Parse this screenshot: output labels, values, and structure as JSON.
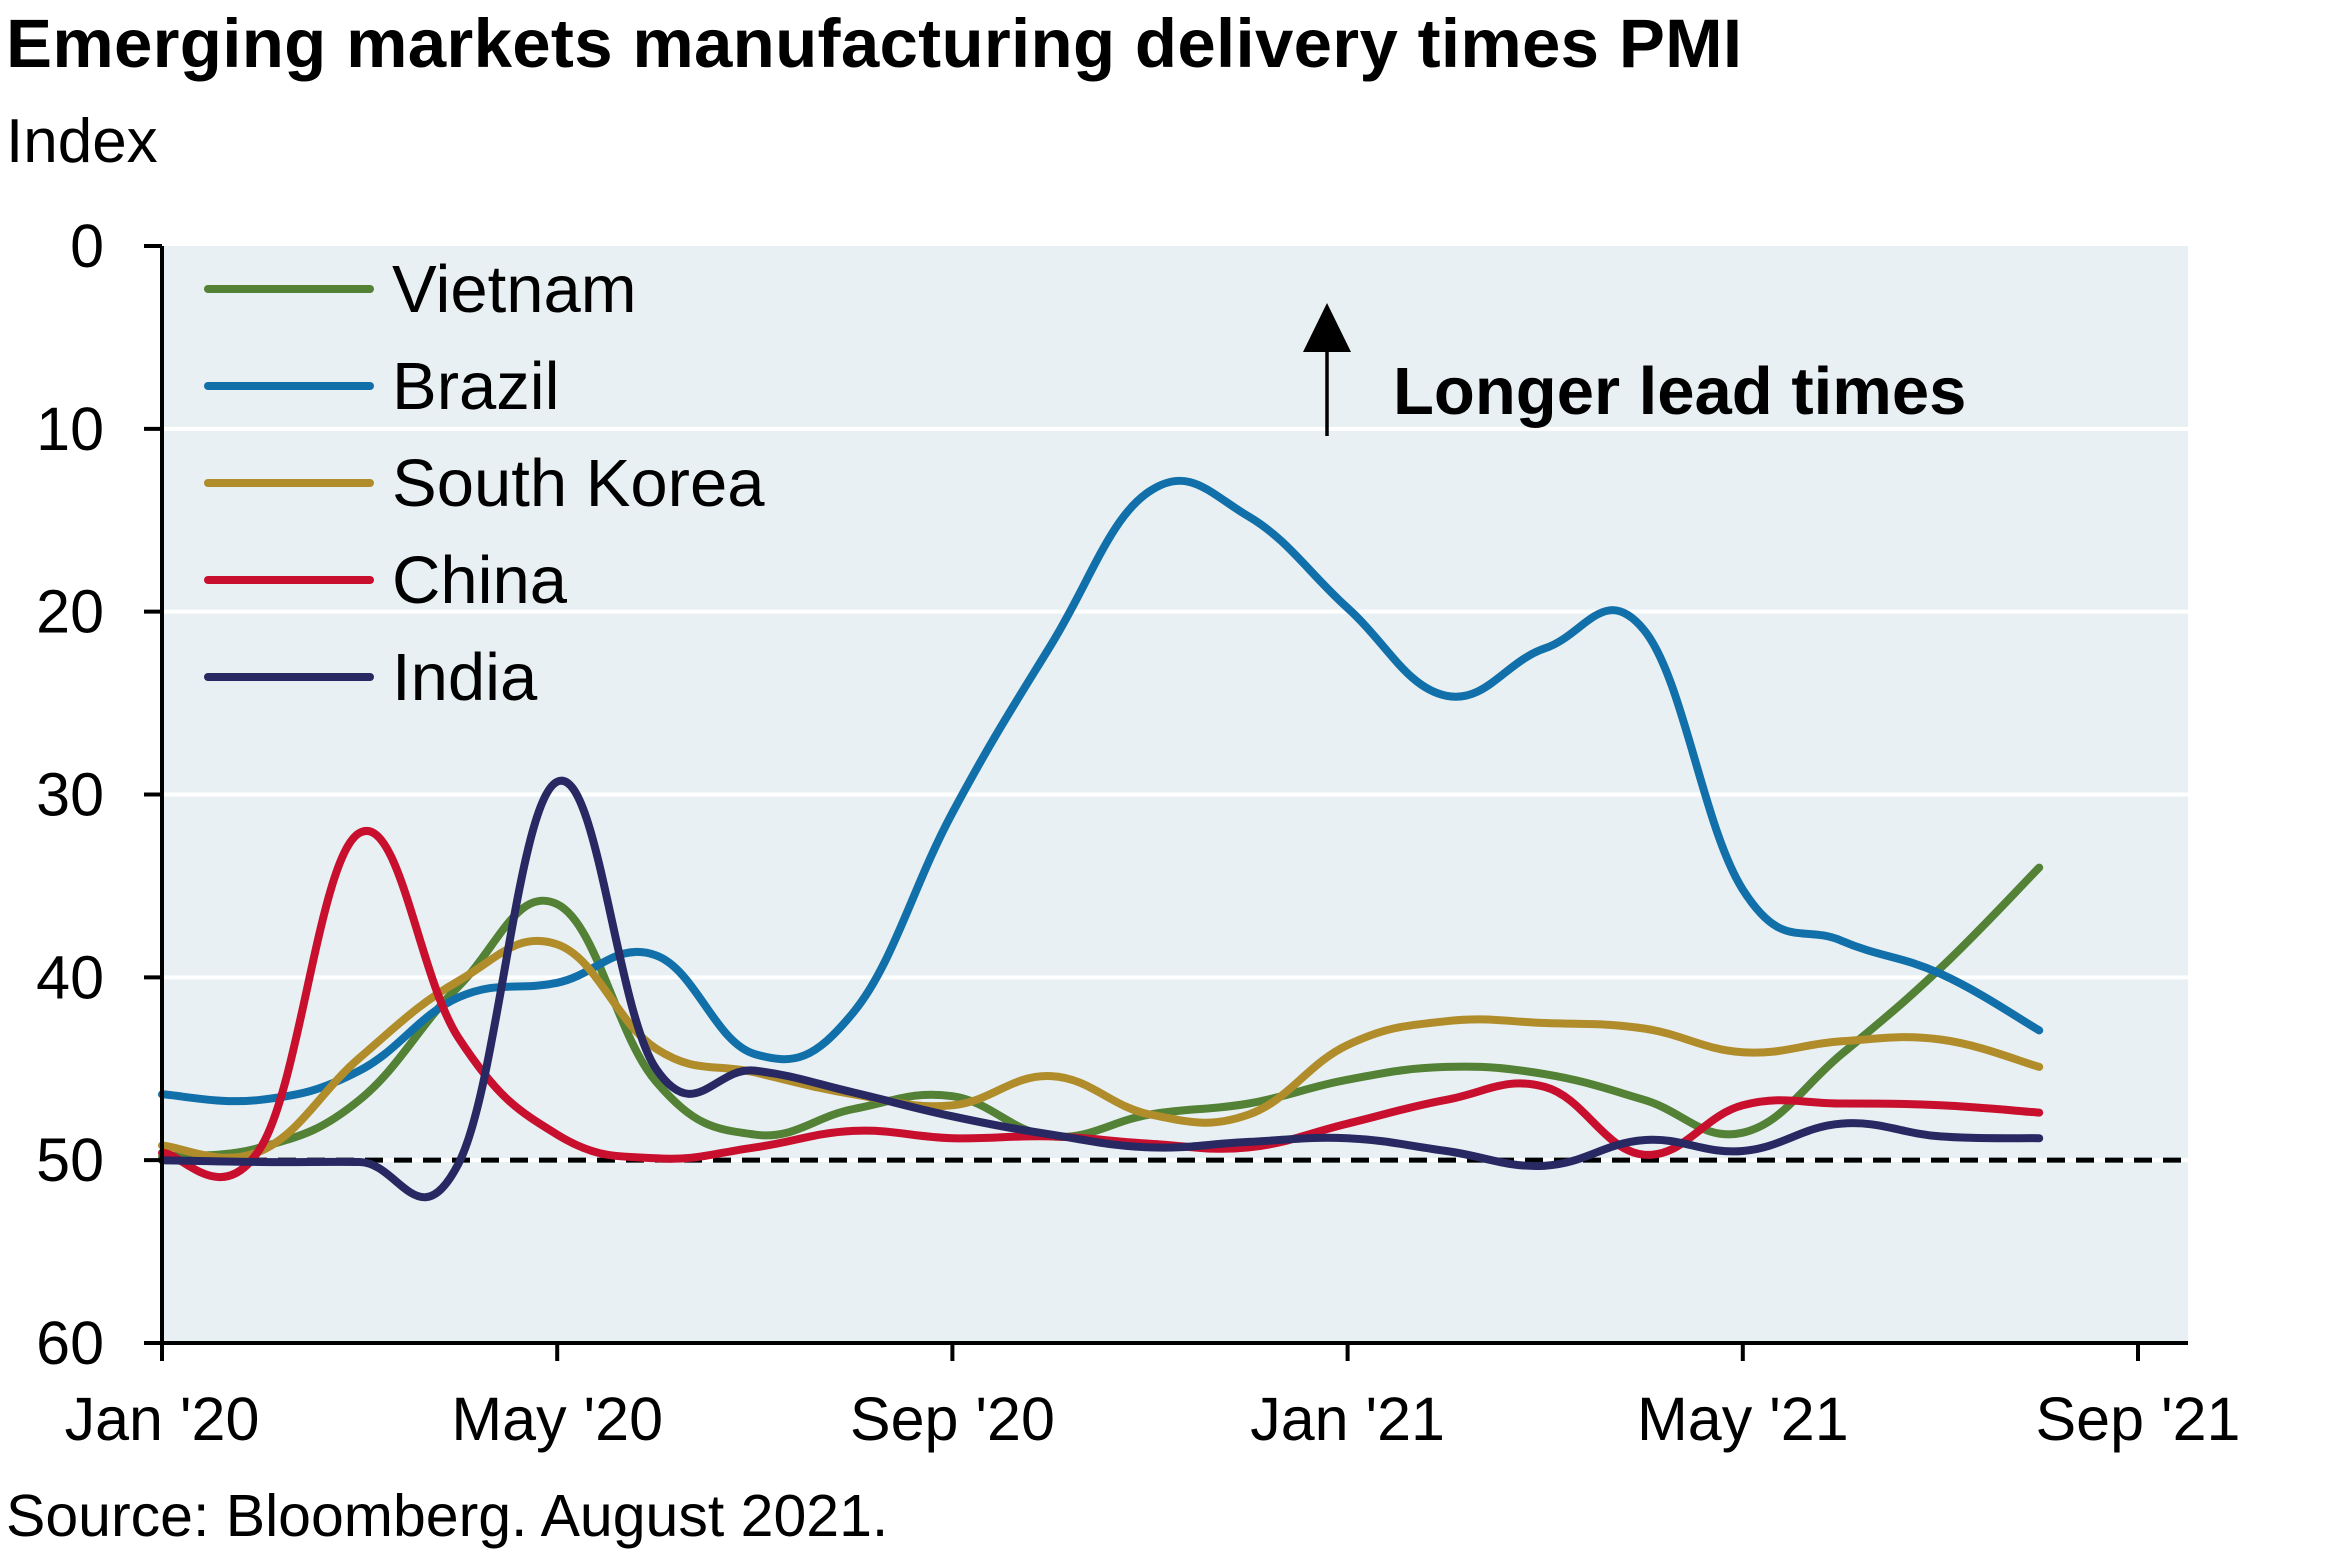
{
  "chart_data": {
    "type": "line",
    "title": "Emerging markets manufacturing delivery times PMI",
    "subtitle": "Index",
    "source": "Source: Bloomberg. August 2021.",
    "xlabel": "",
    "ylabel": "Index",
    "ylim": [
      0,
      60
    ],
    "y_inverted": true,
    "yticks": [
      0,
      10,
      20,
      30,
      40,
      50,
      60
    ],
    "xticks": [
      "Jan '20",
      "May '20",
      "Sep '20",
      "Jan '21",
      "May '21",
      "Sep '21"
    ],
    "xtick_months": [
      0,
      4,
      8,
      12,
      16,
      20
    ],
    "grid": true,
    "legend_position": "top-left",
    "reference_line": {
      "value": 50,
      "style": "dashed"
    },
    "annotation": {
      "text": "Longer lead times",
      "direction": "up"
    },
    "x": [
      0,
      1,
      2,
      3,
      4,
      5,
      6,
      7,
      8,
      9,
      10,
      11,
      12,
      13,
      14,
      15,
      16,
      17,
      18,
      19
    ],
    "series": [
      {
        "name": "Vietnam",
        "color": "#538135",
        "values": [
          49.8,
          49.3,
          46.7,
          40.5,
          36.0,
          45.7,
          48.6,
          47.2,
          46.5,
          48.7,
          47.5,
          46.9,
          45.6,
          44.9,
          45.3,
          46.7,
          48.5,
          44.2,
          39.5,
          34.0
        ]
      },
      {
        "name": "Brazil",
        "color": "#1170AA",
        "values": [
          46.4,
          46.7,
          45.1,
          41.1,
          40.3,
          38.8,
          44.2,
          41.9,
          31.0,
          21.8,
          13.4,
          14.8,
          19.8,
          24.6,
          22.0,
          21.0,
          35.2,
          38.0,
          39.8,
          42.9
        ]
      },
      {
        "name": "South Korea",
        "color": "#B08D2A",
        "values": [
          49.2,
          49.5,
          44.4,
          40.2,
          38.2,
          43.9,
          45.2,
          46.4,
          47.0,
          45.4,
          47.5,
          47.5,
          43.7,
          42.4,
          42.5,
          42.8,
          44.1,
          43.5,
          43.4,
          44.9
        ]
      },
      {
        "name": "China",
        "color": "#C8102E",
        "values": [
          49.6,
          49.3,
          32.1,
          43.3,
          48.6,
          49.9,
          49.3,
          48.4,
          48.8,
          48.7,
          49.1,
          49.3,
          48.0,
          46.7,
          46.0,
          49.7,
          47.0,
          46.9,
          47.0,
          47.4
        ]
      },
      {
        "name": "India",
        "color": "#282862",
        "values": [
          50.0,
          50.1,
          50.1,
          50.2,
          29.3,
          45.0,
          45.1,
          46.3,
          47.6,
          48.6,
          49.3,
          49.0,
          48.8,
          49.5,
          50.3,
          48.9,
          49.5,
          48.0,
          48.7,
          48.8
        ]
      }
    ]
  }
}
